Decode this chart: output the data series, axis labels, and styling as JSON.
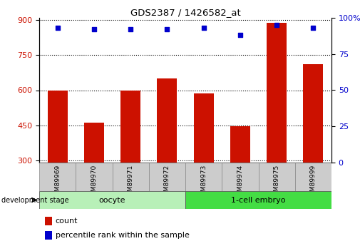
{
  "title": "GDS2387 / 1426582_at",
  "samples": [
    "GSM89969",
    "GSM89970",
    "GSM89971",
    "GSM89972",
    "GSM89973",
    "GSM89974",
    "GSM89975",
    "GSM89999"
  ],
  "counts": [
    600,
    462,
    600,
    650,
    585,
    447,
    890,
    710
  ],
  "percentile_ranks": [
    93,
    92,
    92,
    92,
    93,
    88,
    95,
    93
  ],
  "groups": [
    {
      "label": "oocyte",
      "indices": [
        0,
        1,
        2,
        3
      ],
      "color": "#b8f0b8"
    },
    {
      "label": "1-cell embryo",
      "indices": [
        4,
        5,
        6,
        7
      ],
      "color": "#44dd44"
    }
  ],
  "ylim_left": [
    290,
    910
  ],
  "ylim_right": [
    0,
    100
  ],
  "yticks_left": [
    300,
    450,
    600,
    750,
    900
  ],
  "yticks_right": [
    0,
    25,
    50,
    75,
    100
  ],
  "bar_color": "#cc1100",
  "dot_color": "#0000cc",
  "background_color": "#ffffff",
  "bar_width": 0.55,
  "tick_box_color": "#cccccc",
  "tick_box_edge_color": "#888888"
}
